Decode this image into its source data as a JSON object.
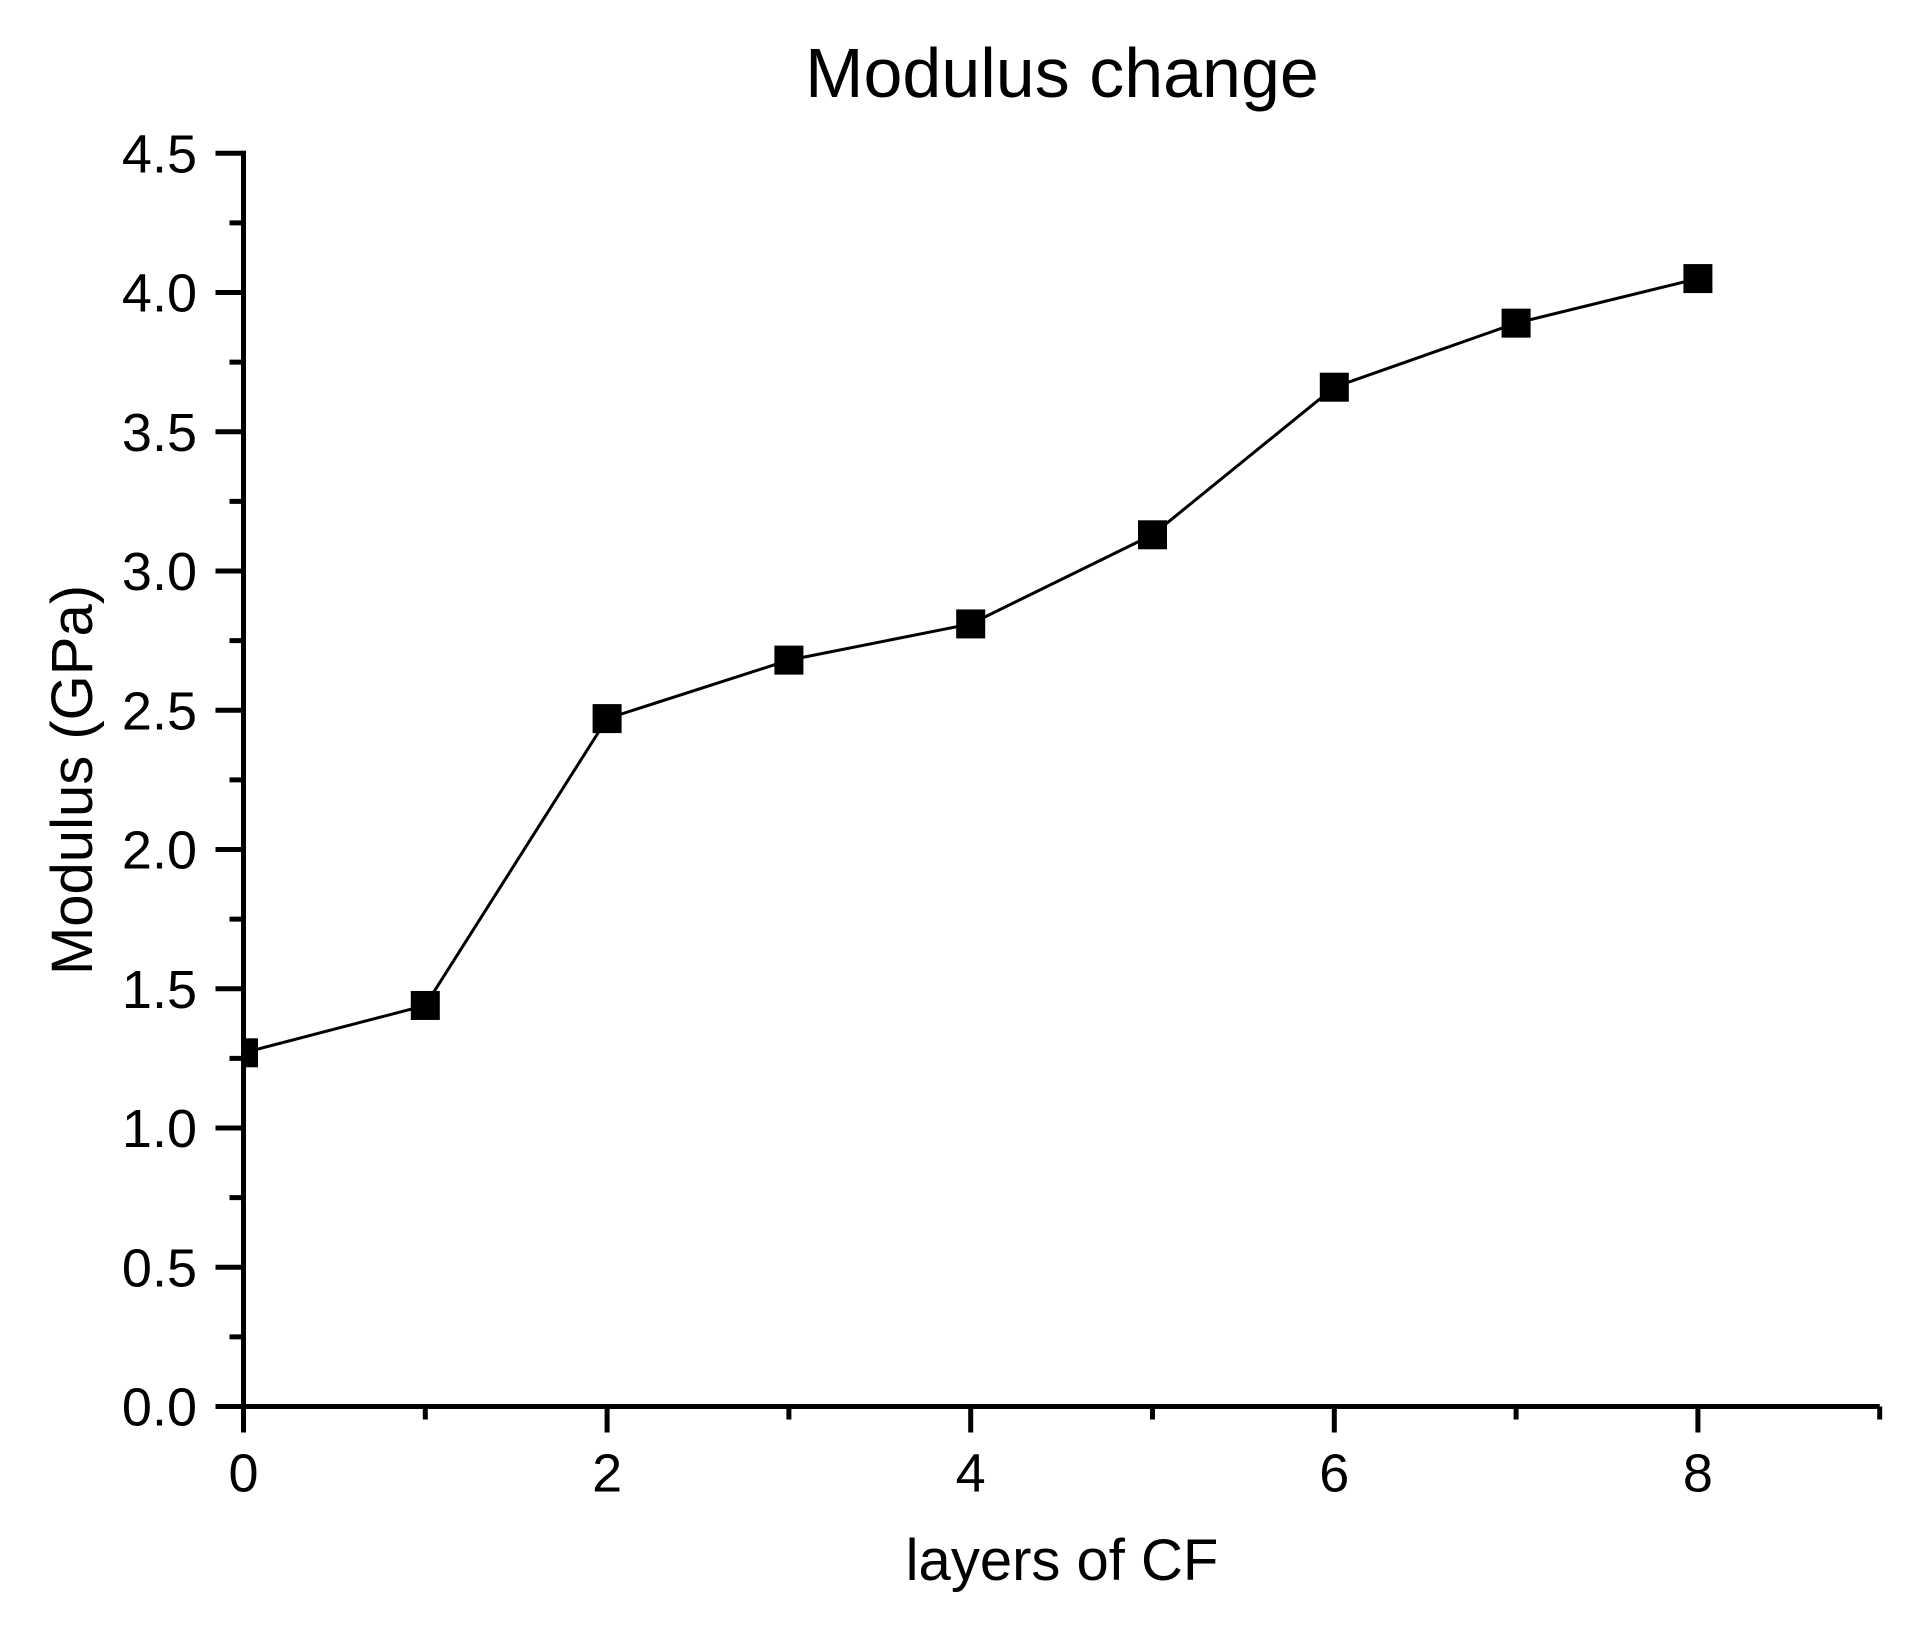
{
  "chart_data": {
    "type": "line",
    "title": "Modulus change",
    "xlabel": "layers of CF",
    "ylabel": "Modulus (GPa)",
    "x": [
      0,
      1,
      2,
      3,
      4,
      5,
      6,
      7,
      8
    ],
    "series": [
      {
        "name": "Modulus",
        "values": [
          1.27,
          1.44,
          2.47,
          2.68,
          2.81,
          3.13,
          3.66,
          3.89,
          4.05
        ]
      }
    ],
    "xlim": [
      0,
      9
    ],
    "ylim": [
      0,
      4.5
    ],
    "x_major_ticks": [
      0,
      2,
      4,
      6,
      8
    ],
    "x_tick_labels": [
      "0",
      "2",
      "4",
      "6",
      "8"
    ],
    "x_minor_ticks": [
      1,
      3,
      5,
      7,
      9
    ],
    "y_major_ticks": [
      0,
      0.5,
      1,
      1.5,
      2,
      2.5,
      3,
      3.5,
      4,
      4.5
    ],
    "y_tick_labels": [
      "0.0",
      "0.5",
      "1.0",
      "1.5",
      "2.0",
      "2.5",
      "3.0",
      "3.5",
      "4.0",
      "4.5"
    ],
    "y_minor_step": 0.25,
    "marker": "filled-square",
    "line_color": "#000000",
    "marker_color": "#000000",
    "axis_color": "#000000",
    "background": "#ffffff",
    "grid": false,
    "legend": false
  }
}
